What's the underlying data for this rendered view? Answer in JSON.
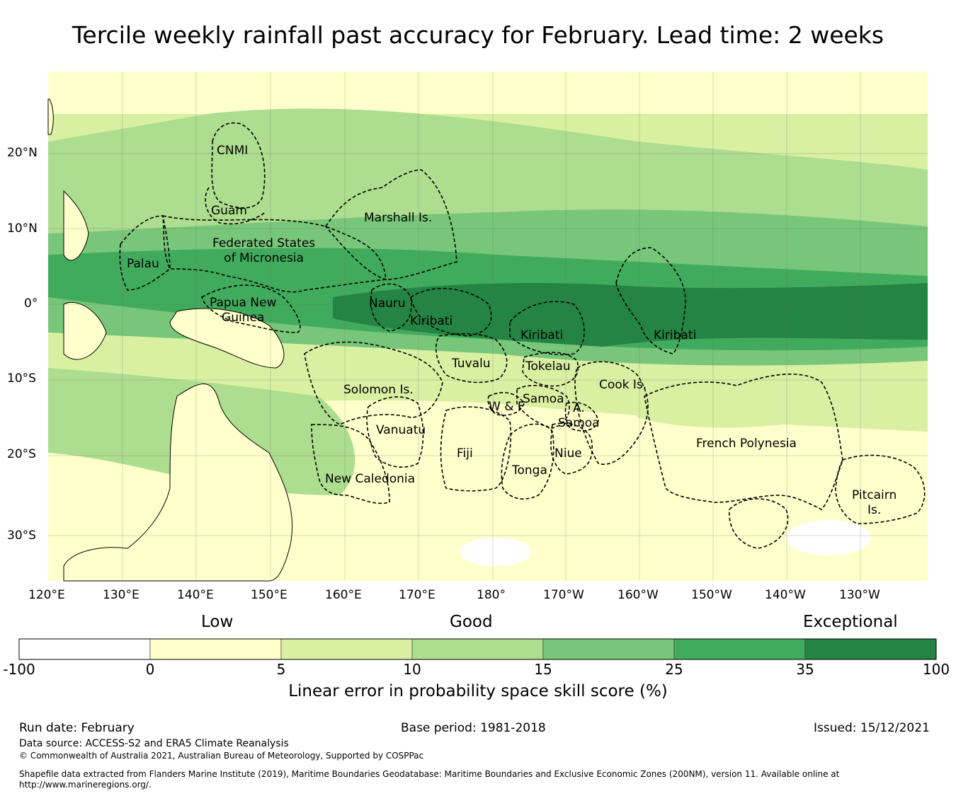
{
  "title": "Tercile weekly rainfall past accuracy for February. Lead time: 2 weeks",
  "map": {
    "lat_ticks": [
      "20°N",
      "10°N",
      "0°",
      "10°S",
      "20°S",
      "30°S"
    ],
    "lon_ticks": [
      "120°E",
      "130°E",
      "140°E",
      "150°E",
      "160°E",
      "170°E",
      "180°",
      "170°W",
      "160°W",
      "150°W",
      "140°W",
      "130°W"
    ],
    "regions": [
      {
        "name": "CNMI"
      },
      {
        "name": "Guam"
      },
      {
        "name": "Marshall Is."
      },
      {
        "name": "Federated States\nof Micronesia"
      },
      {
        "name": "Palau"
      },
      {
        "name": "Papua New\nGuinea"
      },
      {
        "name": "Nauru"
      },
      {
        "name": "Kiribati"
      },
      {
        "name": "Kiribati"
      },
      {
        "name": "Kiribati"
      },
      {
        "name": "Tuvalu"
      },
      {
        "name": "Tokelau"
      },
      {
        "name": "Solomon Is."
      },
      {
        "name": "Samoa"
      },
      {
        "name": "W & F"
      },
      {
        "name": "A."
      },
      {
        "name": "Samoa"
      },
      {
        "name": "Cook Is."
      },
      {
        "name": "Vanuatu"
      },
      {
        "name": "Fiji"
      },
      {
        "name": "Niue"
      },
      {
        "name": "Tonga"
      },
      {
        "name": "French Polynesia"
      },
      {
        "name": "New Caledonia"
      },
      {
        "name": "Pitcairn\nIs."
      }
    ]
  },
  "colorbar": {
    "categories": [
      "Low",
      "Good",
      "Exceptional"
    ],
    "bins": [
      {
        "from": -100,
        "to": 0,
        "color": "#ffffff"
      },
      {
        "from": 0,
        "to": 5,
        "color": "#ffffcc"
      },
      {
        "from": 5,
        "to": 10,
        "color": "#d9f0a3"
      },
      {
        "from": 10,
        "to": 15,
        "color": "#addd8e"
      },
      {
        "from": 15,
        "to": 25,
        "color": "#78c679"
      },
      {
        "from": 25,
        "to": 35,
        "color": "#41ab5d"
      },
      {
        "from": 35,
        "to": 100,
        "color": "#238443"
      }
    ],
    "tick_labels": [
      "-100",
      "0",
      "5",
      "10",
      "15",
      "25",
      "35",
      "100"
    ],
    "label": "Linear error in probability space skill score (%)"
  },
  "footer": {
    "run_date": "Run date: February",
    "base_period": "Base period: 1981-2018",
    "issued": "Issued: 15/12/2021",
    "data_source": "Data source: ACCESS-S2 and ERA5 Climate Reanalysis",
    "copyright": "© Commonwealth of Australia 2021, Australian Bureau of Meteorology, Supported by COSPPac",
    "shapefile": "Shapefile data extracted from Flanders Marine Institute (2019), Maritime Boundaries Geodatabase: Maritime Boundaries and Exclusive Economic Zones (200NM), version 11. Available online at http://www.marineregions.org/."
  }
}
